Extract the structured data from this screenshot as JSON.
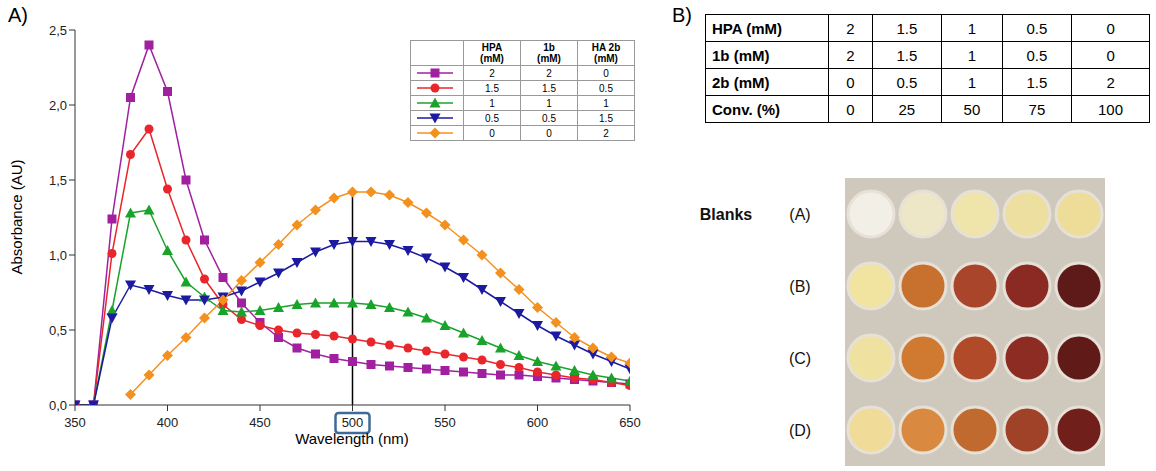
{
  "chart_data": {
    "type": "line",
    "x_label": "Wavelength (nm)",
    "y_label": "Absorbance (AU)",
    "x": [
      350,
      360,
      370,
      380,
      390,
      400,
      410,
      420,
      430,
      440,
      450,
      460,
      470,
      480,
      490,
      500,
      510,
      520,
      530,
      540,
      550,
      560,
      570,
      580,
      590,
      600,
      610,
      620,
      630,
      640,
      650
    ],
    "series": [
      {
        "color": "#a020a0",
        "marker": "square",
        "values": [
          0,
          0,
          1.24,
          2.05,
          2.4,
          2.09,
          1.5,
          1.1,
          0.85,
          0.68,
          0.55,
          0.45,
          0.38,
          0.34,
          0.31,
          0.29,
          0.27,
          0.26,
          0.25,
          0.24,
          0.23,
          0.22,
          0.21,
          0.2,
          0.2,
          0.19,
          0.18,
          0.17,
          0.16,
          0.15,
          0.14
        ]
      },
      {
        "color": "#e8262b",
        "marker": "circle",
        "values": [
          0,
          0,
          1.01,
          1.67,
          1.84,
          1.44,
          1.1,
          0.84,
          0.67,
          0.57,
          0.53,
          0.5,
          0.48,
          0.47,
          0.46,
          0.44,
          0.42,
          0.4,
          0.38,
          0.36,
          0.34,
          0.32,
          0.3,
          0.27,
          0.25,
          0.22,
          0.2,
          0.18,
          0.17,
          0.15,
          0.13
        ]
      },
      {
        "color": "#1aa32a",
        "marker": "triangle",
        "values": [
          0,
          0,
          0.63,
          1.28,
          1.3,
          1.03,
          0.82,
          0.72,
          0.63,
          0.62,
          0.63,
          0.65,
          0.67,
          0.68,
          0.68,
          0.68,
          0.67,
          0.65,
          0.62,
          0.58,
          0.53,
          0.48,
          0.43,
          0.38,
          0.33,
          0.29,
          0.26,
          0.23,
          0.2,
          0.18,
          0.16
        ]
      },
      {
        "color": "#1c1aa0",
        "marker": "triangle-down",
        "values": [
          0,
          0,
          0.58,
          0.8,
          0.77,
          0.73,
          0.7,
          0.7,
          0.72,
          0.76,
          0.82,
          0.88,
          0.95,
          1.02,
          1.07,
          1.09,
          1.09,
          1.07,
          1.03,
          0.98,
          0.92,
          0.85,
          0.77,
          0.69,
          0.61,
          0.53,
          0.46,
          0.4,
          0.34,
          0.29,
          0.24
        ]
      },
      {
        "color": "#f4901e",
        "marker": "diamond",
        "values": [
          null,
          null,
          null,
          0.07,
          0.2,
          0.33,
          0.45,
          0.58,
          0.7,
          0.83,
          0.95,
          1.07,
          1.2,
          1.3,
          1.38,
          1.42,
          1.42,
          1.4,
          1.35,
          1.28,
          1.2,
          1.1,
          1.0,
          0.88,
          0.77,
          0.65,
          0.55,
          0.45,
          0.38,
          0.32,
          0.28
        ]
      }
    ],
    "xlim": [
      350,
      650
    ],
    "xticks": [
      350,
      400,
      450,
      500,
      550,
      600,
      650
    ],
    "ylim": [
      0,
      2.5
    ],
    "yticks": [
      {
        "value": 0,
        "label": "0,0"
      },
      {
        "value": 0.5,
        "label": "0,5"
      },
      {
        "value": 1,
        "label": "1,0"
      },
      {
        "value": 1.5,
        "label": "1,5"
      },
      {
        "value": 2,
        "label": "2,0"
      },
      {
        "value": 2.5,
        "label": "2,5"
      }
    ],
    "highlight_x": 500,
    "legend": "top-right"
  },
  "panel_labels": [
    "A)",
    "B)"
  ],
  "legend_table": {
    "columns": [
      "HPA (mM)",
      "1b (mM)",
      "HA 2b (mM)"
    ],
    "rows": [
      [
        2,
        2,
        0
      ],
      [
        1.5,
        1.5,
        0.5
      ],
      [
        1,
        1,
        1
      ],
      [
        0.5,
        0.5,
        1.5
      ],
      [
        0,
        0,
        2
      ]
    ]
  },
  "table": {
    "rows": [
      {
        "label": "HPA (mM)",
        "values": [
          2,
          1.5,
          1,
          0.5,
          0
        ]
      },
      {
        "label": "1b (mM)",
        "values": [
          2,
          1.5,
          1,
          0.5,
          0
        ]
      },
      {
        "label": "2b (mM)",
        "values": [
          0,
          0.5,
          1,
          1.5,
          2
        ]
      },
      {
        "label": "Conv. (%)",
        "values": [
          0,
          25,
          50,
          75,
          100
        ]
      }
    ]
  },
  "photo": {
    "title": "Blanks",
    "rows": [
      {
        "label": "(A)",
        "colors": [
          "#f2efe6",
          "#ede7c8",
          "#efe4a9",
          "#ecdf9f",
          "#eedd98"
        ]
      },
      {
        "label": "(B)",
        "colors": [
          "#f0e4a0",
          "#c8702e",
          "#a8452a",
          "#8a2a22",
          "#5e1a18"
        ]
      },
      {
        "label": "(C)",
        "colors": [
          "#efe2a0",
          "#cf7a30",
          "#b04a28",
          "#8c2c22",
          "#601a18"
        ]
      },
      {
        "label": "(D)",
        "colors": [
          "#f0dc98",
          "#d98a40",
          "#c06a30",
          "#a04228",
          "#701f1a"
        ]
      }
    ]
  }
}
